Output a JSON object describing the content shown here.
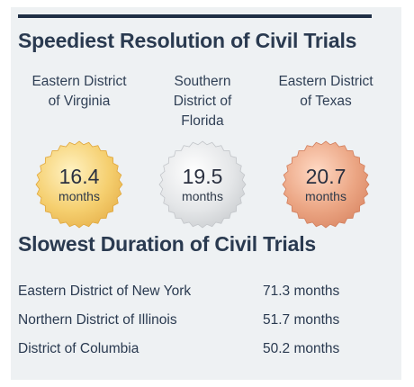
{
  "fastest": {
    "title": "Speediest Resolution of Civil Trials",
    "unit": "months",
    "items": [
      {
        "district": "Eastern District\nof Virginia",
        "value": "16.4",
        "medal": "gold"
      },
      {
        "district": "Southern\nDistrict of\nFlorida",
        "value": "19.5",
        "medal": "silver"
      },
      {
        "district": "Eastern District\nof Texas",
        "value": "20.7",
        "medal": "bronze"
      }
    ]
  },
  "slowest": {
    "title": "Slowest Duration of Civil Trials",
    "rows": [
      {
        "district": "Eastern District of New York",
        "value": "71.3 months"
      },
      {
        "district": "Northern District of Illinois",
        "value": "51.7 months"
      },
      {
        "district": "District of Columbia",
        "value": "50.2 months"
      }
    ]
  },
  "colors": {
    "background_panel": "#eef1f3",
    "top_bar": "#1f2f45",
    "heading_text": "#2a3a50",
    "gold": "#f0c25a",
    "silver": "#d9dbdd",
    "bronze": "#e49a78"
  },
  "chart_data": [
    {
      "type": "table",
      "title": "Speediest Resolution of Civil Trials",
      "categories": [
        "Eastern District of Virginia",
        "Southern District of Florida",
        "Eastern District of Texas"
      ],
      "values": [
        16.4,
        19.5,
        20.7
      ],
      "unit": "months"
    },
    {
      "type": "table",
      "title": "Slowest Duration of Civil Trials",
      "categories": [
        "Eastern District of New York",
        "Northern District of Illinois",
        "District of Columbia"
      ],
      "values": [
        71.3,
        51.7,
        50.2
      ],
      "unit": "months"
    }
  ]
}
